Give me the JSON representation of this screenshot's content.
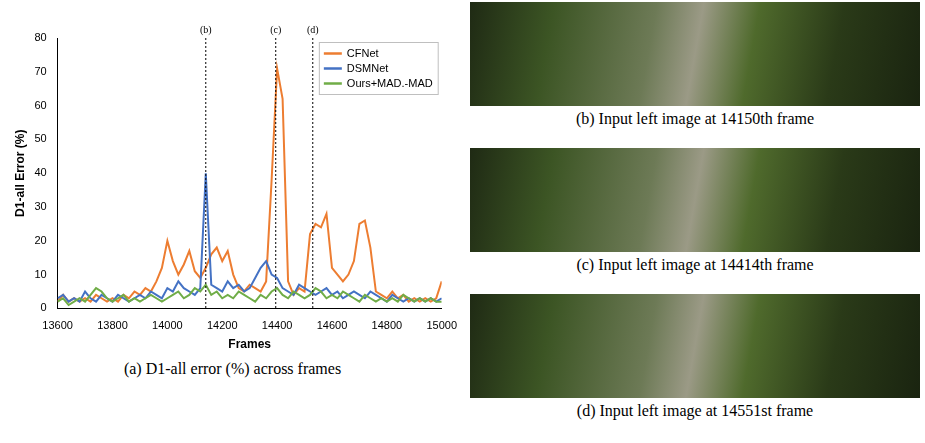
{
  "chart_data": {
    "type": "line",
    "x_label": "Frames",
    "y_label": "D1-all Error (%)",
    "x": [
      13600,
      13620,
      13640,
      13660,
      13680,
      13700,
      13720,
      13740,
      13760,
      13780,
      13800,
      13820,
      13840,
      13860,
      13880,
      13900,
      13920,
      13940,
      13960,
      13980,
      14000,
      14020,
      14040,
      14060,
      14080,
      14100,
      14120,
      14140,
      14160,
      14180,
      14200,
      14220,
      14240,
      14260,
      14280,
      14300,
      14320,
      14340,
      14360,
      14380,
      14400,
      14420,
      14440,
      14460,
      14480,
      14500,
      14520,
      14540,
      14560,
      14580,
      14600,
      14620,
      14640,
      14660,
      14680,
      14700,
      14720,
      14740,
      14760,
      14780,
      14800,
      14820,
      14840,
      14860,
      14880,
      14900,
      14920,
      14940,
      14960,
      14980,
      15000
    ],
    "xlim": [
      13600,
      15000
    ],
    "xticks": [
      13600,
      13800,
      14000,
      14200,
      14400,
      14600,
      14800,
      15000
    ],
    "ylim": [
      0,
      80
    ],
    "yticks": [
      0,
      10,
      20,
      30,
      40,
      50,
      60,
      70,
      80
    ],
    "grid": false,
    "legend": "upper right",
    "series": [
      {
        "name": "CFNet",
        "color": "#ed7d31",
        "values": [
          2,
          4,
          2,
          3,
          2,
          3,
          2,
          4,
          3,
          2,
          3,
          2,
          4,
          3,
          5,
          4,
          6,
          5,
          8,
          12,
          20,
          14,
          10,
          13,
          17,
          11,
          9,
          12,
          16,
          18,
          14,
          17,
          10,
          6,
          5,
          7,
          6,
          5,
          8,
          38,
          71,
          62,
          8,
          4,
          6,
          5,
          22,
          25,
          24,
          28,
          12,
          10,
          8,
          10,
          14,
          25,
          26,
          18,
          5,
          4,
          3,
          5,
          3,
          4,
          2,
          3,
          2,
          3,
          2,
          3,
          8
        ]
      },
      {
        "name": "DSMNet",
        "color": "#4472c4",
        "values": [
          3,
          4,
          2,
          3,
          2,
          5,
          3,
          2,
          4,
          3,
          2,
          4,
          3,
          2,
          3,
          4,
          3,
          5,
          4,
          3,
          6,
          5,
          8,
          6,
          5,
          4,
          6,
          40,
          7,
          6,
          5,
          8,
          6,
          7,
          5,
          6,
          9,
          12,
          14,
          10,
          9,
          6,
          5,
          4,
          7,
          6,
          5,
          4,
          5,
          6,
          4,
          5,
          3,
          4,
          5,
          4,
          3,
          5,
          4,
          3,
          2,
          4,
          3,
          2,
          3,
          2,
          3,
          2,
          3,
          2,
          3
        ]
      },
      {
        "name": "Ours+MAD.-MAD",
        "color": "#70ad47",
        "values": [
          2,
          3,
          1,
          2,
          3,
          2,
          4,
          6,
          5,
          3,
          2,
          3,
          4,
          2,
          3,
          2,
          3,
          4,
          3,
          2,
          3,
          4,
          5,
          3,
          4,
          6,
          5,
          7,
          4,
          5,
          3,
          4,
          3,
          5,
          4,
          3,
          2,
          4,
          3,
          5,
          6,
          4,
          3,
          5,
          4,
          3,
          4,
          6,
          5,
          3,
          4,
          3,
          5,
          4,
          3,
          2,
          4,
          3,
          2,
          3,
          2,
          3,
          2,
          4,
          3,
          2,
          3,
          2,
          3,
          2,
          2
        ]
      }
    ],
    "annotations": [
      {
        "x": 14140,
        "label": "(b)"
      },
      {
        "x": 14395,
        "label": "(c)"
      },
      {
        "x": 14530,
        "label": "(d)"
      }
    ]
  },
  "caption": "(a) D1-all error (%) across frames",
  "images": [
    {
      "caption": "(b) Input left image at 14150th frame"
    },
    {
      "caption": "(c) Input left image at 14414th frame"
    },
    {
      "caption": "(d) Input left image at 14551st frame"
    }
  ]
}
